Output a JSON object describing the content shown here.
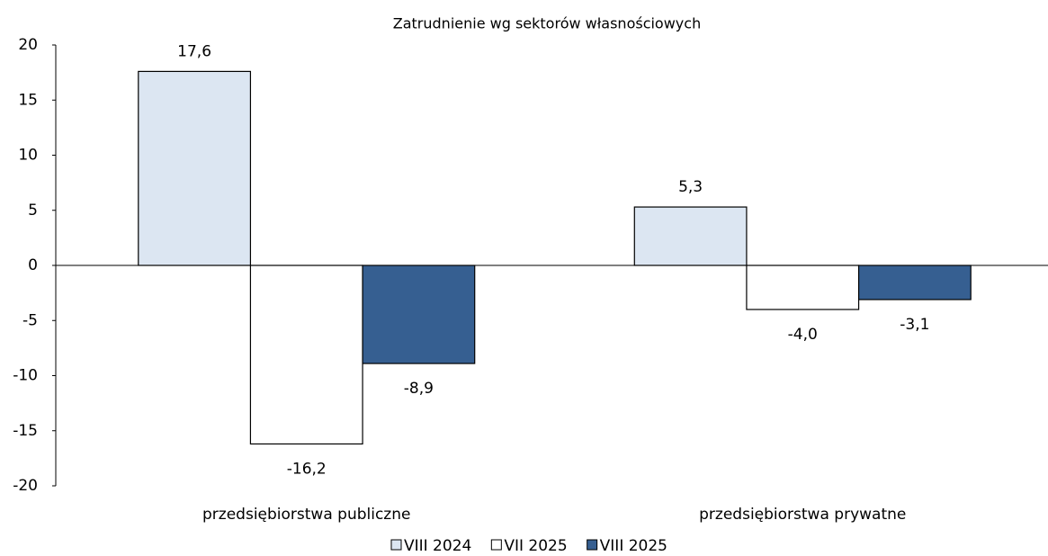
{
  "chart_data": {
    "type": "bar",
    "title": "Zatrudnienie wg sektorów własnościowych",
    "categories": [
      "przedsiębiorstwa publiczne",
      "przedsiębiorstwa prywatne"
    ],
    "series": [
      {
        "name": "VIII 2024",
        "color": "#dce6f2",
        "values": [
          17.6,
          5.3
        ],
        "value_labels": [
          "17,6",
          "5,3"
        ]
      },
      {
        "name": "VII 2025",
        "color": "#ffffff",
        "values": [
          -16.2,
          -4.0
        ],
        "value_labels": [
          "-16,2",
          "-4,0"
        ]
      },
      {
        "name": "VIII 2025",
        "color": "#365f91",
        "values": [
          -8.9,
          -3.1
        ],
        "value_labels": [
          "-8,9",
          "-3,1"
        ]
      }
    ],
    "ylim": [
      -20,
      20
    ],
    "yticks": [
      20,
      15,
      10,
      5,
      0,
      -5,
      -10,
      -15,
      -20
    ],
    "legend": "bottom"
  }
}
